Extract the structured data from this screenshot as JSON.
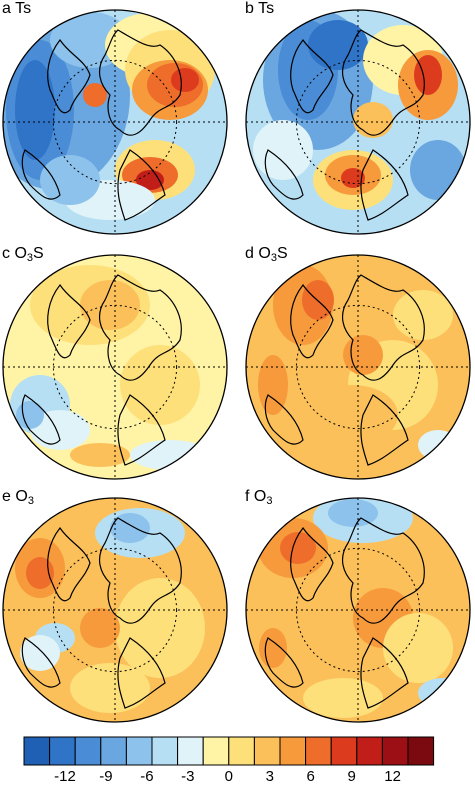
{
  "panels": [
    {
      "letter": "a",
      "var": "Ts",
      "sub": "",
      "scheme": "ts_a"
    },
    {
      "letter": "b",
      "var": "Ts",
      "sub": "",
      "scheme": "ts_b"
    },
    {
      "letter": "c",
      "var": "O",
      "sub": "3",
      "suffix": "S",
      "scheme": "o3s_c"
    },
    {
      "letter": "d",
      "var": "O",
      "sub": "3",
      "suffix": "S",
      "scheme": "o3s_d"
    },
    {
      "letter": "e",
      "var": "O",
      "sub": "3",
      "suffix": "",
      "scheme": "o3_e"
    },
    {
      "letter": "f",
      "var": "O",
      "sub": "3",
      "suffix": "",
      "scheme": "o3_f"
    }
  ],
  "colorbar": {
    "colors": [
      "#1f5fb4",
      "#2f74c7",
      "#4a8dd6",
      "#6aa6e0",
      "#8cc2eb",
      "#b6dff3",
      "#dff3f8",
      "#fff3a6",
      "#fde07a",
      "#fbc05a",
      "#f69a3c",
      "#ee6d2a",
      "#dd3b1e",
      "#c11d19",
      "#9c1015",
      "#7a0a10"
    ],
    "ticks": [
      "-12",
      "-9",
      "-6",
      "-3",
      "0",
      "3",
      "6",
      "9",
      "12"
    ],
    "tick_values": [
      -12,
      -9,
      -6,
      -3,
      0,
      3,
      6,
      9,
      12
    ],
    "range": [
      -15,
      15
    ]
  }
}
